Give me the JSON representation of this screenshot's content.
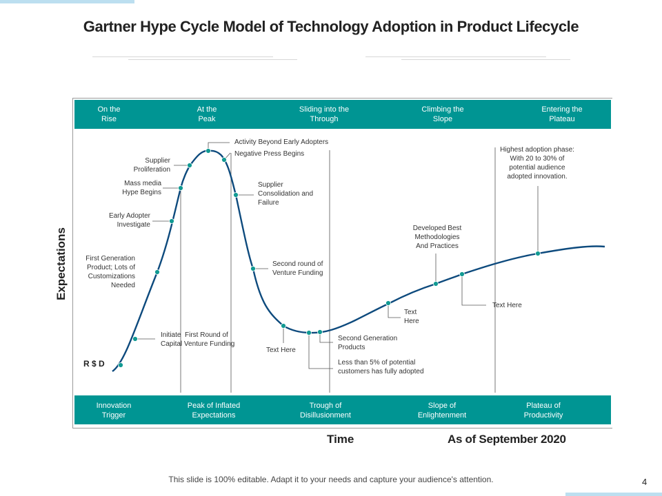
{
  "title": "Gartner Hype Cycle Model of Technology Adoption in Product Lifecycle",
  "phases_top": [
    "On the\nRise",
    "At the\nPeak",
    "Sliding into the\nThrough",
    "Climbing the\nSlope",
    "Entering the\nPlateau"
  ],
  "phases_bottom": [
    "Innovation\nTrigger",
    "Peak of Inflated\nExpectations",
    "Trough of\nDisillusionment",
    "Slope of\nEnlightenment",
    "Plateau of\nProductivity"
  ],
  "annotations": {
    "first_generation": "First Generation\nProduct; Lots of\nCustomizations\nNeeded",
    "early_adopter": "Early Adopter\nInvestigate",
    "mass_media": "Mass media\nHype Begins",
    "supplier_proliferation": "Supplier\nProliferation",
    "activity_beyond": "Activity Beyond Early Adopters",
    "negative_press": "Negative Press Begins",
    "supplier_consolidation": "Supplier\nConsolidation and\nFailure",
    "second_round": "Second round of\nVenture Funding",
    "initiate_funding": "Initiate  First Round of\nCapital Venture Funding",
    "text_here_trough": "Text Here",
    "second_generation": "Second Generation\nProducts",
    "less_than": "Less than 5% of potential\ncustomers has fully adopted",
    "text_here_slope": "Text\nHere",
    "best_methodologies": "Developed Best\nMethodologies\nAnd Practices",
    "text_here_plateau": "Text Here",
    "highest_adoption": "Highest adoption phase:\nWith 20 to 30% of\npotential audience\nadopted innovation."
  },
  "y_axis_label": "Expectations",
  "x_axis_label": "Time",
  "rsd_label": "R $ D",
  "date_label": "As of September 2020",
  "footer": "This slide is 100% editable. Adapt it to your needs and capture your audience's attention.",
  "page_number": "4",
  "colors": {
    "teal": "#009593",
    "curve": "#0d4a7d",
    "marker": "#119a93",
    "leader": "#555555"
  }
}
